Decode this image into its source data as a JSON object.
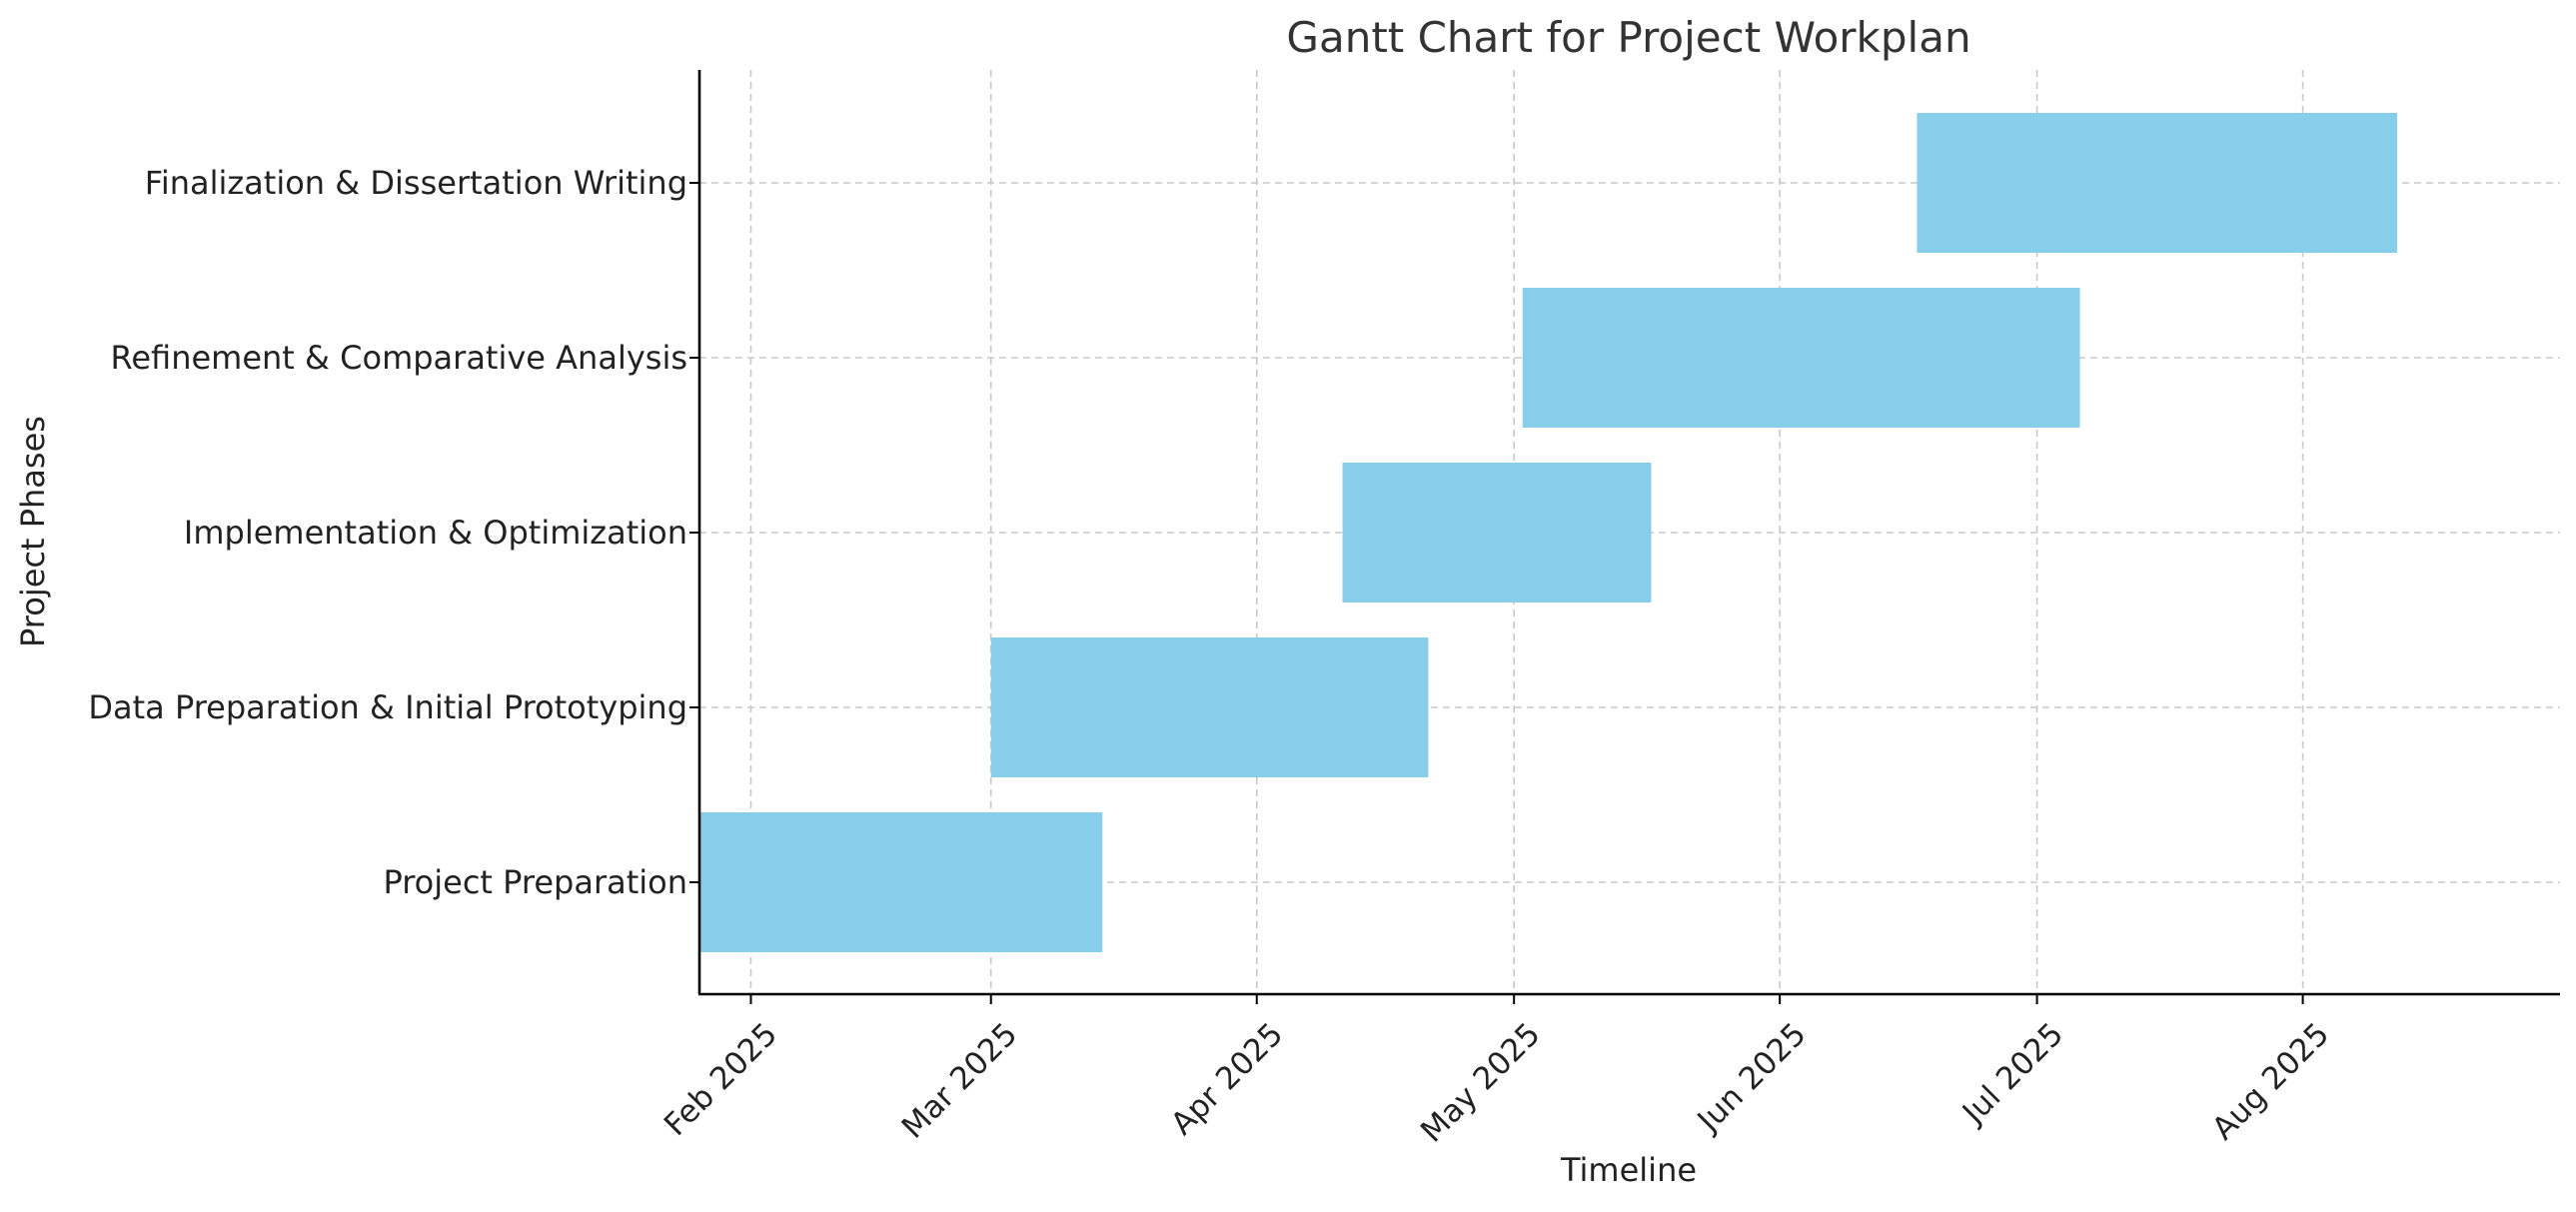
{
  "chart_data": {
    "type": "gantt",
    "title": "Gantt Chart for Project Workplan",
    "xlabel": "Timeline",
    "ylabel": "Project Phases",
    "bar_color": "#87CEEB",
    "grid": true,
    "xlim": [
      "2025-01-26",
      "2025-08-31"
    ],
    "x_ticks": [
      {
        "date": "2025-02-01",
        "label": "Feb 2025"
      },
      {
        "date": "2025-03-01",
        "label": "Mar 2025"
      },
      {
        "date": "2025-04-01",
        "label": "Apr 2025"
      },
      {
        "date": "2025-05-01",
        "label": "May 2025"
      },
      {
        "date": "2025-06-01",
        "label": "Jun 2025"
      },
      {
        "date": "2025-07-01",
        "label": "Jul 2025"
      },
      {
        "date": "2025-08-01",
        "label": "Aug 2025"
      }
    ],
    "tasks": [
      {
        "name": "Project Preparation",
        "start": "2025-01-26",
        "end": "2025-03-14"
      },
      {
        "name": "Data Preparation & Initial Prototyping",
        "start": "2025-03-01",
        "end": "2025-04-21"
      },
      {
        "name": "Implementation & Optimization",
        "start": "2025-04-11",
        "end": "2025-05-17"
      },
      {
        "name": "Refinement & Comparative Analysis",
        "start": "2025-05-02",
        "end": "2025-07-06"
      },
      {
        "name": "Finalization & Dissertation Writing",
        "start": "2025-06-17",
        "end": "2025-08-12"
      }
    ]
  }
}
